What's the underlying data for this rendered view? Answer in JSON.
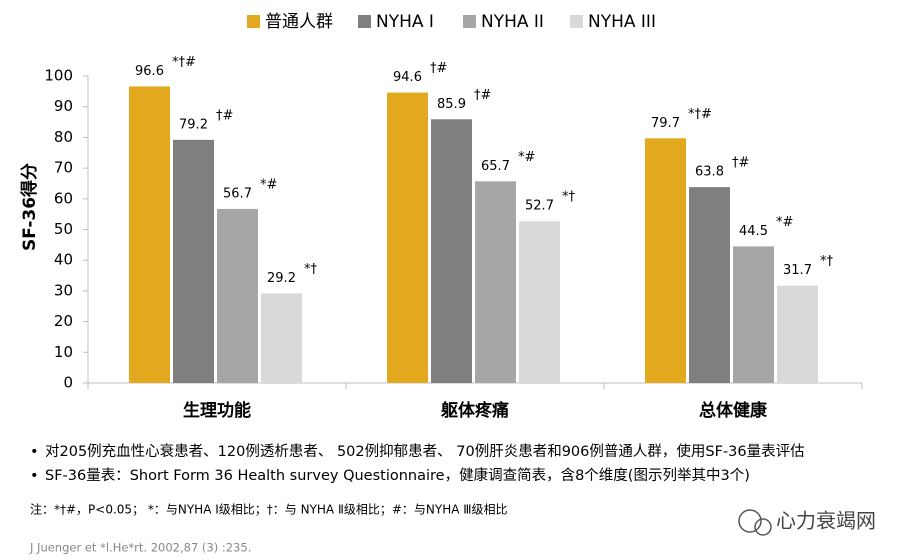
{
  "chart_data": {
    "type": "bar",
    "y_label": "SF-36得分",
    "categories": [
      "生理功能",
      "躯体疼痛",
      "总体健康"
    ],
    "series": [
      {
        "name": "普通人群",
        "color": "#e2a91e",
        "values": [
          96.6,
          94.6,
          79.7
        ],
        "significance": [
          "*†#",
          "†#",
          "*†#"
        ]
      },
      {
        "name": "NYHA I",
        "color": "#7f7f7f",
        "values": [
          79.2,
          85.9,
          63.8
        ],
        "significance": [
          "†#",
          "†#",
          "†#"
        ]
      },
      {
        "name": "NYHA II",
        "color": "#a6a6a6",
        "values": [
          56.7,
          65.7,
          44.5
        ],
        "significance": [
          "*#",
          "*#",
          "*#"
        ]
      },
      {
        "name": "NYHA III",
        "color": "#d9d9d9",
        "values": [
          29.2,
          52.7,
          31.7
        ],
        "significance": [
          "*†",
          "*†",
          "*†"
        ]
      }
    ],
    "ylim": [
      0,
      100
    ],
    "yticks": [
      0,
      10,
      20,
      30,
      40,
      50,
      60,
      70,
      80,
      90,
      100
    ],
    "grid": false
  },
  "notes": {
    "bullets": [
      "对205例充血性心衰患者、120例透析患者、 502例抑郁患者、 70例肝炎患者和906例普通人群，使用SF-36量表评估",
      "SF-36量表：Short Form 36 Health survey Questionnaire，健康调查简表，含8个维度(图示列举其中3个)"
    ],
    "footnote": "注：*†#，P<0.05； *：与NYHA Ⅰ级相比；†：与 NYHA Ⅱ级相比；#：与NYHA Ⅲ级相比",
    "reference": "J Juenger  et *l.He*rt. 2002,87 (3) :235.",
    "watermark": "心力衰竭网"
  }
}
